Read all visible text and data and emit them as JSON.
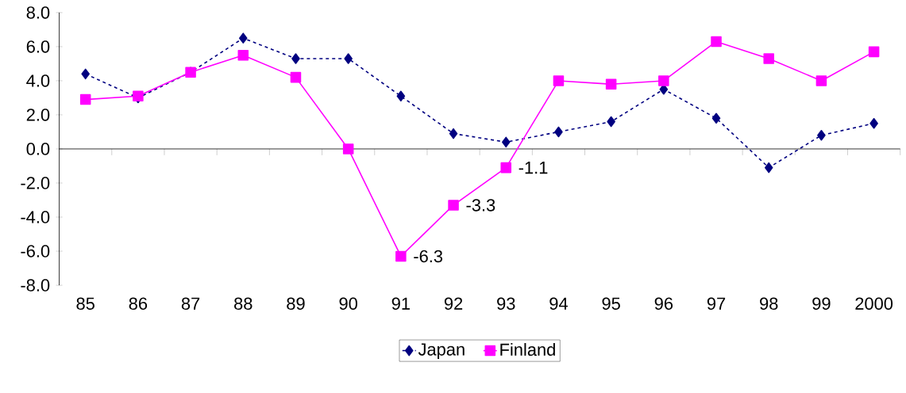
{
  "chart_data": {
    "type": "line",
    "categories": [
      "85",
      "86",
      "87",
      "88",
      "89",
      "90",
      "91",
      "92",
      "93",
      "94",
      "95",
      "96",
      "97",
      "98",
      "99",
      "2000"
    ],
    "series": [
      {
        "name": "Japan",
        "color": "#000080",
        "marker": "diamond",
        "line_style": "dotted",
        "values": [
          4.4,
          3.0,
          4.5,
          6.5,
          5.3,
          5.3,
          3.1,
          0.9,
          0.4,
          1.0,
          1.6,
          3.5,
          1.8,
          -1.1,
          0.8,
          1.5
        ]
      },
      {
        "name": "Finland",
        "color": "#ff00ff",
        "marker": "square",
        "line_style": "solid",
        "values": [
          2.9,
          3.1,
          4.5,
          5.5,
          4.2,
          0.0,
          -6.3,
          -3.3,
          -1.1,
          4.0,
          3.8,
          4.0,
          6.3,
          5.3,
          4.0,
          5.7
        ],
        "value_labels": [
          null,
          null,
          null,
          null,
          null,
          null,
          "-6.3",
          "-3.3",
          "-1.1",
          null,
          null,
          null,
          null,
          null,
          null,
          null
        ]
      }
    ],
    "ylim": [
      -8,
      8
    ],
    "yticks": [
      {
        "value": -8,
        "label": "-8.0"
      },
      {
        "value": -6,
        "label": "-6.0"
      },
      {
        "value": -4,
        "label": "-4.0"
      },
      {
        "value": -2,
        "label": "-2.0"
      },
      {
        "value": 0,
        "label": "0.0"
      },
      {
        "value": 2,
        "label": "2.0"
      },
      {
        "value": 4,
        "label": "4.0"
      },
      {
        "value": 6,
        "label": "6.0"
      },
      {
        "value": 8,
        "label": "8.0"
      }
    ],
    "legend": "bottom"
  }
}
